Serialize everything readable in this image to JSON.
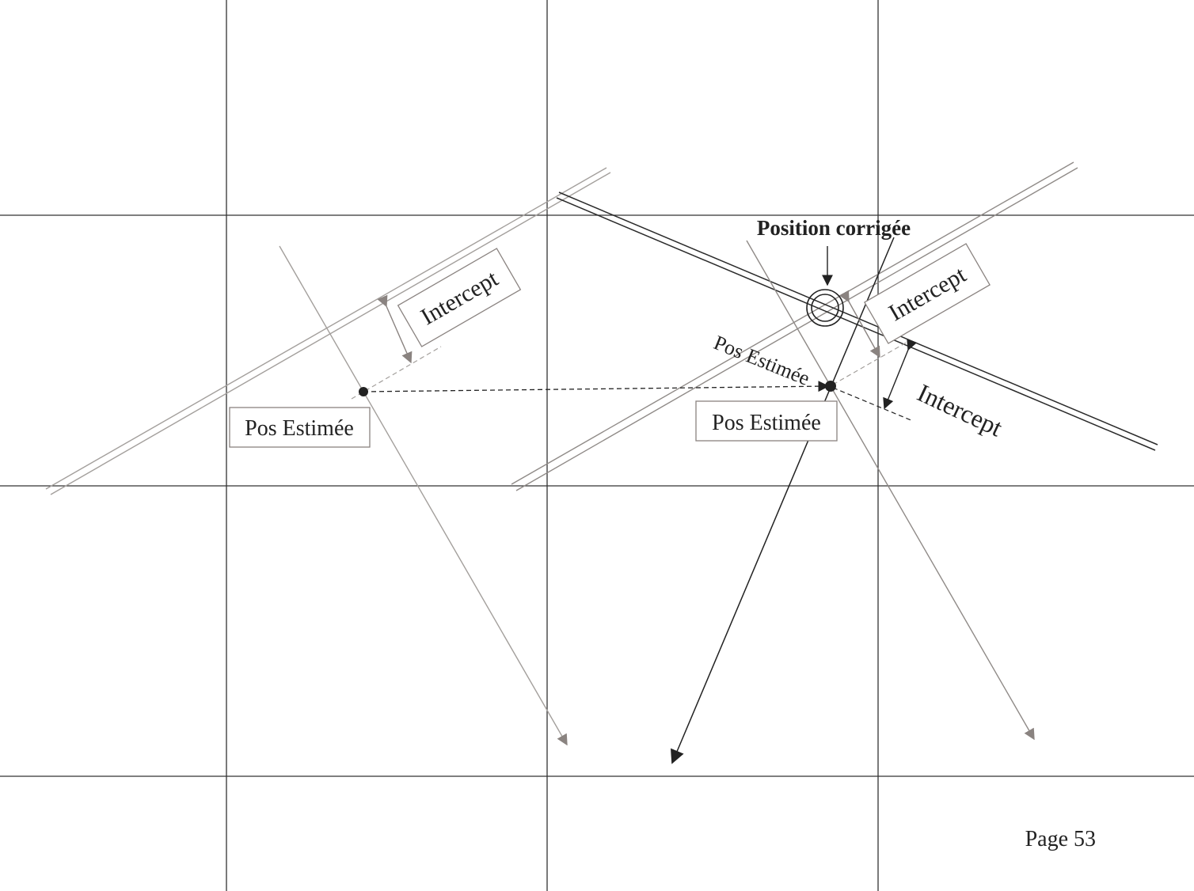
{
  "labels": {
    "position_corrigee": "Position corrigée",
    "intercept_left": "Intercept",
    "intercept_right_upper": "Intercept",
    "intercept_right_lower": "Intercept",
    "pos_estimee_left": "Pos Estimée",
    "pos_estimee_right_box": "Pos Estimée",
    "pos_estimee_right_rotated": "Pos Estimée",
    "page": "Page 53"
  },
  "colors": {
    "grid": "#333333",
    "dark_line": "#2a2a2a",
    "gray_line": "#9a9693",
    "arrow_gray": "#8a8380",
    "box_border": "#8a8380",
    "text": "#222222"
  }
}
